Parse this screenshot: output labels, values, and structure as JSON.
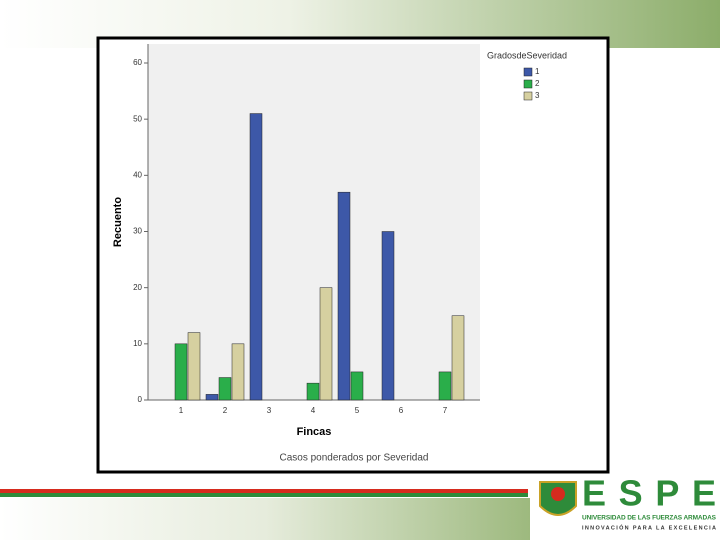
{
  "chart_data": {
    "type": "bar",
    "categories": [
      "1",
      "2",
      "3",
      "4",
      "5",
      "6",
      "7"
    ],
    "series": [
      {
        "name": "1",
        "color": "#3d58a8",
        "values": [
          0,
          1,
          51,
          0,
          37,
          30,
          0
        ]
      },
      {
        "name": "2",
        "color": "#2aae4a",
        "values": [
          10,
          4,
          0,
          3,
          5,
          0,
          5
        ]
      },
      {
        "name": "3",
        "color": "#d6d0a0",
        "values": [
          12,
          10,
          0,
          20,
          0,
          0,
          15
        ]
      }
    ],
    "legend_title": "GradosdeSeveridad",
    "ylabel": "Recuento",
    "xlabel": "Fincas",
    "footnote": "Casos ponderados por Severidad",
    "ylim": [
      0,
      60
    ],
    "yticks": [
      0,
      10,
      20,
      30,
      40,
      50,
      60
    ],
    "grid": false,
    "legend": "right"
  },
  "logo": {
    "name": "ESPE",
    "line1": "UNIVERSIDAD DE LAS FUERZAS ARMADAS",
    "line2": "INNOVACIÓN PARA LA EXCELENCIA"
  }
}
